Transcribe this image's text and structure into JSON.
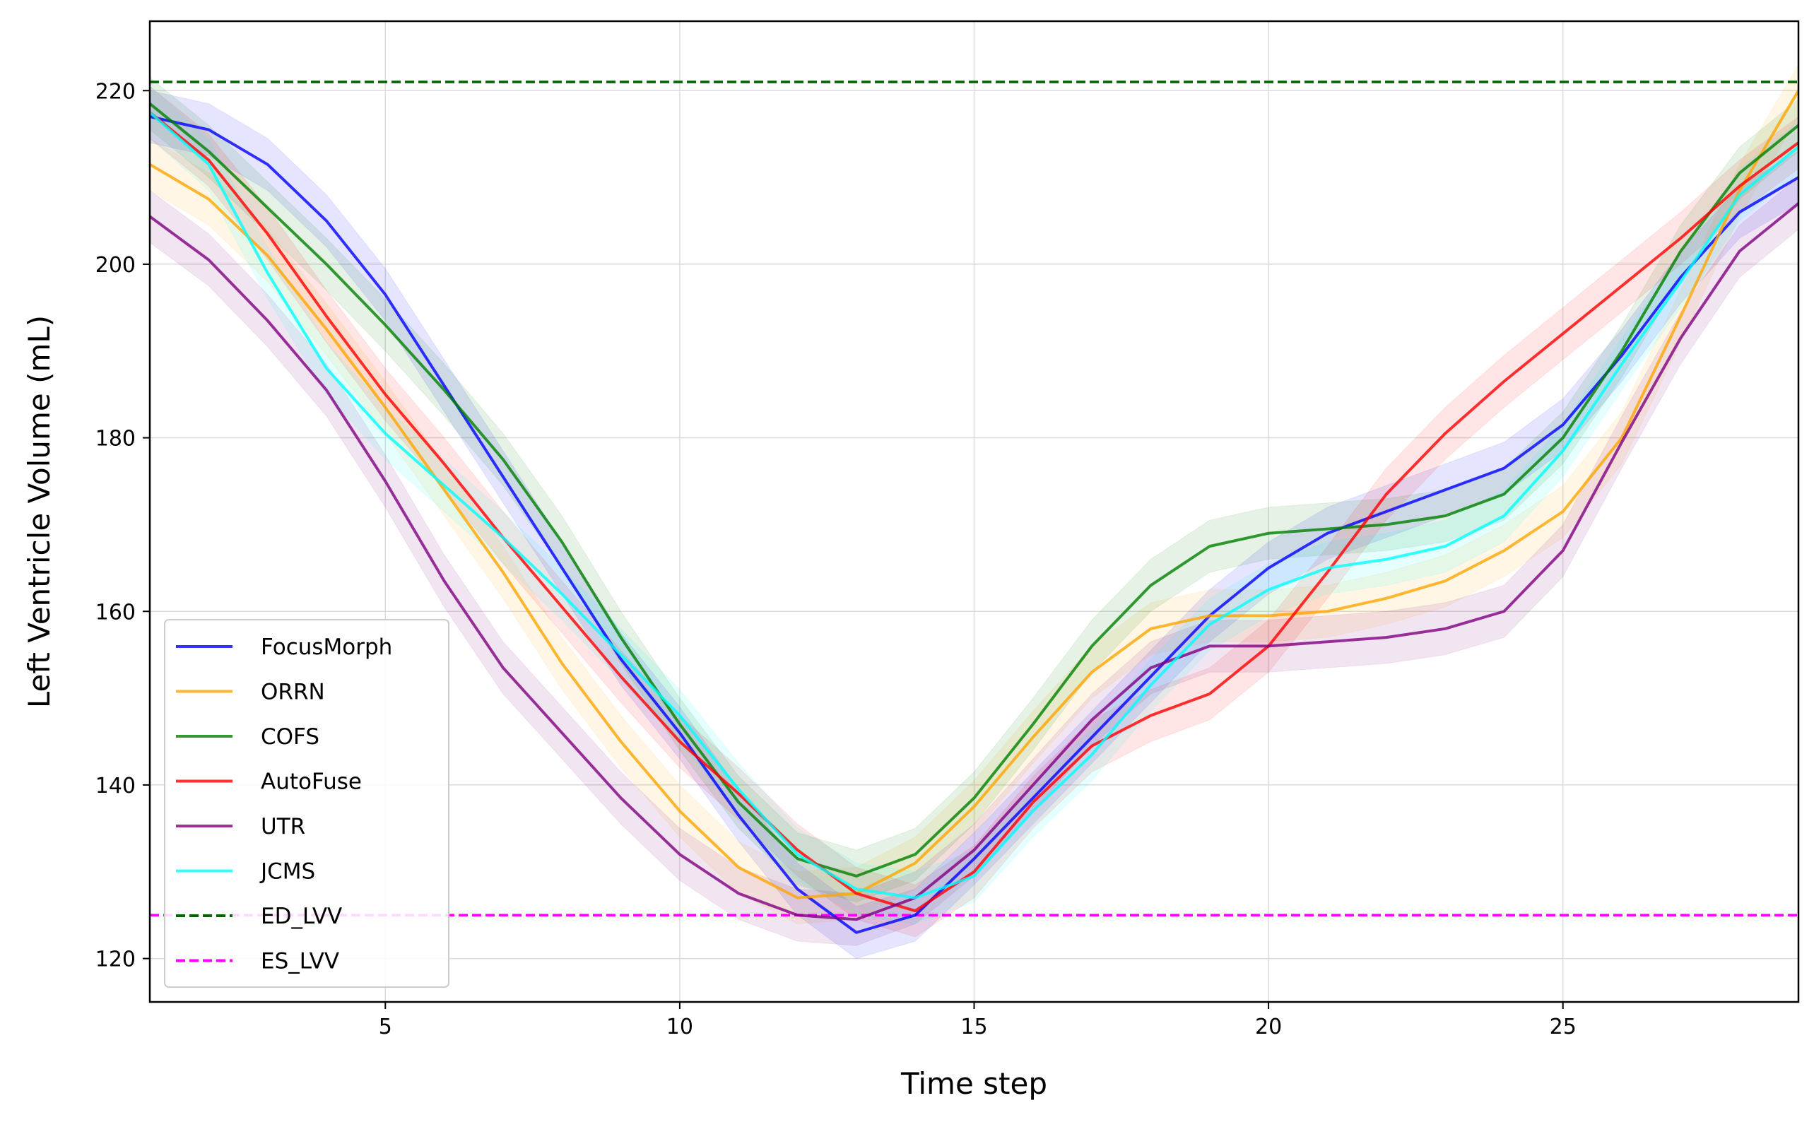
{
  "chart_data": {
    "type": "line",
    "title": "",
    "xlabel": "Time step",
    "ylabel": "Left Ventricle Volume (mL)",
    "xlim": [
      1,
      29
    ],
    "ylim": [
      115,
      228
    ],
    "xticks": [
      5,
      10,
      15,
      20,
      25
    ],
    "yticks": [
      120,
      140,
      160,
      180,
      200,
      220
    ],
    "grid": true,
    "legend_position": "lower-left",
    "x": [
      1,
      2,
      3,
      4,
      5,
      6,
      7,
      8,
      9,
      10,
      11,
      12,
      13,
      14,
      15,
      16,
      17,
      18,
      19,
      20,
      21,
      22,
      23,
      24,
      25,
      26,
      27,
      28,
      29
    ],
    "series": [
      {
        "name": "FocusMorph",
        "color": "#0000ff",
        "band": 3,
        "values": [
          217,
          215.5,
          211.5,
          205,
          196.5,
          186,
          175.5,
          165,
          154.5,
          146,
          136.5,
          128,
          123,
          125,
          131.5,
          138.5,
          145.5,
          152.5,
          159.5,
          165,
          169,
          171.5,
          174,
          176.5,
          181.5,
          189.5,
          198.5,
          206,
          210
        ]
      },
      {
        "name": "ORRN",
        "color": "#ffa500",
        "band": 3,
        "values": [
          211.5,
          207.5,
          201,
          192.5,
          183.5,
          174,
          164.5,
          154,
          145,
          137,
          130.5,
          127,
          127.5,
          131,
          137.5,
          145.5,
          153,
          158,
          159.5,
          159.5,
          160,
          161.5,
          163.5,
          167,
          171.5,
          180,
          194,
          208.5,
          220
        ]
      },
      {
        "name": "COFS",
        "color": "#008000",
        "band": 3,
        "values": [
          218.5,
          213,
          206.5,
          200,
          193,
          185.5,
          177.5,
          168,
          157,
          147,
          138,
          131.5,
          129.5,
          132,
          138.5,
          147,
          156,
          163,
          167.5,
          169,
          169.5,
          170,
          171,
          173.5,
          180,
          190,
          201.5,
          210.5,
          216
        ]
      },
      {
        "name": "AutoFuse",
        "color": "#ff0000",
        "band": 3,
        "values": [
          217.5,
          212,
          203.5,
          194,
          185,
          177,
          168.5,
          160.5,
          152.5,
          145,
          139,
          132.5,
          127.5,
          125.5,
          130,
          138,
          144.5,
          148,
          150.5,
          156,
          164.5,
          173.5,
          180.5,
          186.5,
          192,
          197.5,
          203,
          209,
          214
        ]
      },
      {
        "name": "UTR",
        "color": "#800080",
        "band": 3,
        "values": [
          205.5,
          200.5,
          193.5,
          185.5,
          175,
          163.5,
          153.5,
          146,
          138.5,
          132,
          127.5,
          125,
          124.5,
          127,
          132.5,
          140,
          147.5,
          153.5,
          156,
          156,
          156.5,
          157,
          158,
          160,
          167,
          179.5,
          191.5,
          201.5,
          207
        ]
      },
      {
        "name": "JCMS",
        "color": "#00ffff",
        "band": 3,
        "values": [
          217.5,
          211.5,
          199,
          188,
          180.5,
          174.5,
          168.5,
          162,
          155,
          148,
          139.5,
          132,
          128,
          127,
          129.5,
          137,
          143.5,
          151.5,
          158.5,
          162.5,
          165,
          166,
          167.5,
          171,
          178.5,
          188.5,
          198,
          208,
          213.5
        ]
      }
    ],
    "reference_lines": [
      {
        "name": "ED_LVV",
        "color": "#006400",
        "value": 221,
        "style": "dashed"
      },
      {
        "name": "ES_LVV",
        "color": "#ff00ff",
        "value": 125,
        "style": "dashed"
      }
    ],
    "legend": [
      "FocusMorph",
      "ORRN",
      "COFS",
      "AutoFuse",
      "UTR",
      "JCMS",
      "ED_LVV",
      "ES_LVV"
    ]
  }
}
